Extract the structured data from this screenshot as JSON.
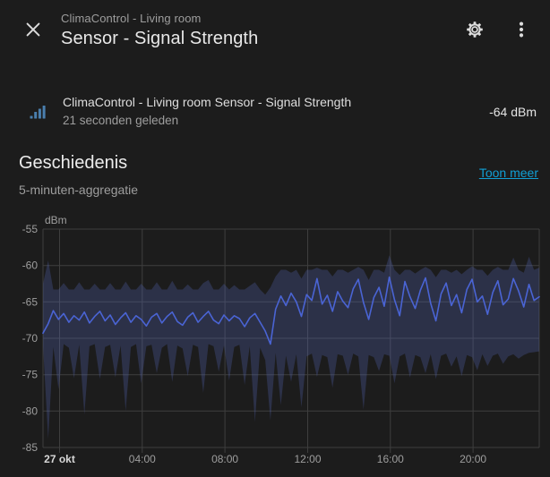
{
  "header": {
    "device": "ClimaControl - Living room",
    "title": "Sensor - Signal Strength"
  },
  "entity": {
    "name": "ClimaControl - Living room Sensor - Signal Strength",
    "last_changed": "21 seconden geleden",
    "state": "-64 dBm"
  },
  "history": {
    "heading": "Geschiedenis",
    "show_more": "Toon meer",
    "aggregation": "5-minuten-aggregatie"
  },
  "icons": {
    "close": "close-icon",
    "settings": "gear-icon",
    "overflow": "kebab-menu-icon",
    "entity": "signal-strength-icon"
  },
  "colors": {
    "background": "#1c1c1c",
    "text_primary": "#e1e1e1",
    "text_secondary": "#9e9e9e",
    "link": "#119fd4",
    "entity_icon": "#4a7fae",
    "chart_line": "#4a64d4",
    "chart_band": "rgba(90,110,205,0.25)",
    "grid": "#3e3e3e",
    "axis_label": "#9e9e9e",
    "axis_label_bold": "#d8d8d8"
  },
  "chart_data": {
    "type": "line",
    "title": "Geschiedenis",
    "subtitle": "5-minuten-aggregatie",
    "y_unit": "dBm",
    "y_range": [
      -55,
      -85
    ],
    "y_ticks": [
      -55,
      -60,
      -65,
      -70,
      -75,
      -80,
      -85
    ],
    "x_range_hours": [
      0,
      24
    ],
    "x_ticks": [
      {
        "label": "27 okt",
        "hour": 0.8,
        "bold": true
      },
      {
        "label": "04:00",
        "hour": 4.8,
        "bold": false
      },
      {
        "label": "08:00",
        "hour": 8.8,
        "bold": false
      },
      {
        "label": "12:00",
        "hour": 12.8,
        "bold": false
      },
      {
        "label": "16:00",
        "hour": 16.8,
        "bold": false
      },
      {
        "label": "20:00",
        "hour": 20.8,
        "bold": false
      }
    ],
    "sample_interval_hours": 0.25,
    "grid": true,
    "legend": false,
    "series": [
      {
        "name": "mean",
        "role": "line",
        "values": [
          -69.3,
          -68.0,
          -66.2,
          -67.4,
          -66.6,
          -67.8,
          -66.9,
          -67.5,
          -66.4,
          -67.9,
          -67.0,
          -66.3,
          -67.6,
          -66.8,
          -68.1,
          -67.2,
          -66.5,
          -67.8,
          -66.9,
          -67.4,
          -68.3,
          -67.1,
          -66.6,
          -67.9,
          -67.0,
          -66.4,
          -67.7,
          -68.2,
          -67.1,
          -66.5,
          -67.8,
          -67.0,
          -66.3,
          -67.5,
          -68.0,
          -66.8,
          -67.6,
          -66.9,
          -67.3,
          -68.4,
          -67.2,
          -66.6,
          -67.8,
          -69.0,
          -70.8,
          -66.0,
          -64.2,
          -65.5,
          -63.8,
          -65.0,
          -67.0,
          -64.0,
          -64.8,
          -61.8,
          -65.3,
          -64.1,
          -66.3,
          -63.6,
          -64.9,
          -65.8,
          -63.2,
          -61.9,
          -65.1,
          -67.4,
          -64.4,
          -63.0,
          -65.6,
          -61.6,
          -64.7,
          -66.9,
          -62.2,
          -64.3,
          -65.9,
          -63.4,
          -61.7,
          -65.2,
          -67.6,
          -63.9,
          -62.4,
          -65.5,
          -64.0,
          -66.5,
          -63.3,
          -61.9,
          -65.0,
          -64.2,
          -66.7,
          -63.7,
          -62.1,
          -65.4,
          -64.6,
          -61.8,
          -63.5,
          -65.7,
          -62.6,
          -64.8,
          -64.3
        ]
      },
      {
        "name": "max",
        "role": "band-top",
        "values": [
          -62.5,
          -59.3,
          -63.3,
          -63.3,
          -62.4,
          -63.3,
          -63.3,
          -62.3,
          -63.3,
          -63.3,
          -62.5,
          -63.3,
          -63.3,
          -62.4,
          -63.3,
          -63.3,
          -62.2,
          -63.3,
          -63.3,
          -62.5,
          -63.3,
          -63.3,
          -62.3,
          -63.3,
          -63.3,
          -62.1,
          -63.3,
          -63.3,
          -62.6,
          -63.3,
          -63.3,
          -62.4,
          -62.0,
          -63.3,
          -63.3,
          -62.5,
          -63.3,
          -62.7,
          -63.3,
          -63.3,
          -62.8,
          -62.3,
          -63.3,
          -64.0,
          -63.0,
          -61.5,
          -60.6,
          -60.6,
          -61.0,
          -60.6,
          -61.8,
          -60.6,
          -60.6,
          -60.3,
          -60.6,
          -60.6,
          -61.5,
          -60.6,
          -60.6,
          -61.0,
          -60.6,
          -60.2,
          -60.6,
          -62.0,
          -60.6,
          -60.6,
          -61.0,
          -58.6,
          -60.6,
          -61.3,
          -60.6,
          -60.6,
          -61.1,
          -60.6,
          -60.2,
          -60.6,
          -61.6,
          -60.6,
          -60.6,
          -61.0,
          -60.6,
          -61.2,
          -60.6,
          -60.1,
          -60.6,
          -60.6,
          -61.4,
          -60.6,
          -60.2,
          -60.6,
          -60.6,
          -58.9,
          -60.6,
          -61.0,
          -58.8,
          -60.6,
          -60.3
        ]
      },
      {
        "name": "min",
        "role": "band-bottom",
        "values": [
          -71.0,
          -83.8,
          -71.2,
          -77.0,
          -70.8,
          -71.3,
          -75.5,
          -70.9,
          -80.5,
          -71.1,
          -70.8,
          -75.6,
          -71.2,
          -70.9,
          -75.4,
          -71.0,
          -80.0,
          -71.2,
          -70.8,
          -76.2,
          -71.1,
          -70.9,
          -74.8,
          -71.3,
          -70.8,
          -76.0,
          -71.0,
          -71.4,
          -75.2,
          -70.9,
          -71.2,
          -77.5,
          -70.8,
          -71.1,
          -74.6,
          -71.0,
          -75.8,
          -71.2,
          -70.9,
          -76.4,
          -71.1,
          -81.5,
          -71.3,
          -73.0,
          -81.3,
          -72.0,
          -79.2,
          -72.4,
          -76.0,
          -72.2,
          -79.5,
          -72.5,
          -72.1,
          -75.3,
          -72.3,
          -72.6,
          -76.8,
          -72.2,
          -72.4,
          -75.0,
          -72.1,
          -72.5,
          -79.8,
          -72.3,
          -72.6,
          -74.5,
          -72.2,
          -72.4,
          -76.2,
          -72.5,
          -72.1,
          -75.4,
          -72.3,
          -72.6,
          -74.8,
          -72.2,
          -75.6,
          -72.4,
          -72.1,
          -73.9,
          -72.5,
          -75.2,
          -72.3,
          -72.6,
          -74.4,
          -72.2,
          -73.8,
          -72.4,
          -72.1,
          -73.5,
          -72.5,
          -72.2,
          -72.8,
          -72.3,
          -72.0,
          -71.9,
          -71.8
        ]
      }
    ]
  }
}
